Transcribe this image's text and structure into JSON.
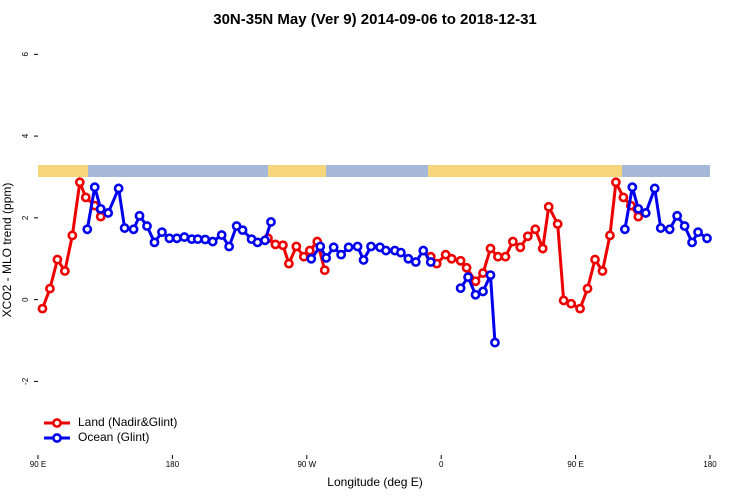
{
  "chart_data": {
    "type": "line",
    "title": "30N-35N May (Ver 9)   2014-09-06 to 2018-12-31",
    "x_label": "Longitude (deg E)",
    "y_label": "XCO2 - MLO trend (ppm)",
    "xlim": [
      90,
      540
    ],
    "xticks": [
      {
        "value": 90,
        "label": "90 E"
      },
      {
        "value": 180,
        "label": "180"
      },
      {
        "value": 270,
        "label": "90 W"
      },
      {
        "value": 360,
        "label": "0"
      },
      {
        "value": 450,
        "label": "90 E"
      },
      {
        "value": 540,
        "label": "180"
      }
    ],
    "ylim": [
      -3.8,
      6.35
    ],
    "yticks": [
      -2,
      0,
      2,
      4,
      6
    ],
    "legend": "bottomleft",
    "series": [
      {
        "name": "Land (Nadir&Glint)",
        "color": "#ee0000",
        "x": [
          93,
          98,
          103,
          108,
          113,
          118,
          122,
          128,
          132,
          null,
          244,
          249,
          254,
          258,
          263,
          268,
          272,
          277,
          282,
          null,
          353,
          357,
          363,
          367,
          373,
          377,
          383,
          388,
          393,
          398,
          403,
          408,
          413,
          418,
          423,
          428,
          432,
          438,
          442,
          447,
          453,
          458,
          463,
          468,
          473,
          477,
          482,
          487,
          492
        ],
        "values": [
          -0.22,
          0.27,
          0.98,
          0.7,
          1.57,
          2.87,
          2.5,
          2.3,
          2.03,
          null,
          1.5,
          1.35,
          1.33,
          0.88,
          1.3,
          1.05,
          1.2,
          1.42,
          0.72,
          null,
          1.05,
          0.88,
          1.1,
          1.0,
          0.95,
          0.78,
          0.45,
          0.65,
          1.25,
          1.05,
          1.05,
          1.42,
          1.28,
          1.55,
          1.72,
          1.25,
          2.27,
          1.85,
          -0.02,
          -0.1,
          -0.22,
          0.27,
          0.98,
          0.7,
          1.57,
          2.87,
          2.5,
          2.3,
          2.03
        ]
      },
      {
        "name": "Ocean (Glint)",
        "color": "#0000ee",
        "x": [
          123,
          128,
          132,
          137,
          144,
          148,
          154,
          158,
          163,
          168,
          173,
          178,
          183,
          188,
          193,
          197,
          202,
          207,
          213,
          218,
          223,
          227,
          233,
          237,
          242,
          246,
          null,
          273,
          279,
          283,
          288,
          293,
          298,
          304,
          308,
          313,
          319,
          323,
          329,
          333,
          338,
          343,
          348,
          353,
          null,
          373,
          378,
          383,
          388,
          393,
          396,
          null,
          483,
          488,
          492,
          497,
          503,
          507,
          513,
          518,
          523,
          528,
          532,
          538
        ],
        "values": [
          1.72,
          2.75,
          2.22,
          2.12,
          2.72,
          1.75,
          1.72,
          2.05,
          1.8,
          1.4,
          1.65,
          1.5,
          1.5,
          1.53,
          1.48,
          1.48,
          1.47,
          1.42,
          1.58,
          1.3,
          1.8,
          1.7,
          1.48,
          1.4,
          1.45,
          1.9,
          null,
          1.0,
          1.3,
          1.02,
          1.28,
          1.1,
          1.28,
          1.3,
          0.97,
          1.3,
          1.28,
          1.2,
          1.2,
          1.15,
          1.0,
          0.92,
          1.2,
          0.92,
          null,
          0.28,
          0.55,
          0.12,
          0.2,
          0.6,
          -1.05,
          null,
          1.72,
          2.75,
          2.22,
          2.12,
          2.72,
          1.75,
          1.72,
          2.05,
          1.8,
          1.4,
          1.65,
          1.5
        ]
      }
    ]
  }
}
